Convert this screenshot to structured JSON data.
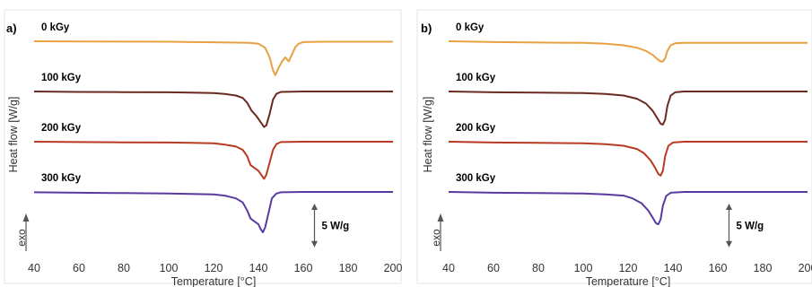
{
  "chart_data": [
    {
      "type": "line",
      "panel_label": "a)",
      "xlabel": "Temperature [°C]",
      "ylabel": "Heat flow [W/g]",
      "xlim": [
        40,
        200
      ],
      "xticks": [
        40,
        60,
        80,
        100,
        120,
        140,
        160,
        180,
        200
      ],
      "xtick_labels": [
        "40",
        "60",
        "80",
        "100",
        "120",
        "140",
        "160",
        "180",
        "200"
      ],
      "exo_label": "exo",
      "scale_bar_label": "5 W/g",
      "scale_bar_value": 5,
      "scale_bar_x": 165,
      "grid": false,
      "series": [
        {
          "name": "0 kGy",
          "color": "#e8a040",
          "x": [
            40,
            60,
            80,
            100,
            110,
            120,
            128,
            136,
            140,
            143,
            145,
            146.5,
            147.5,
            149,
            150.5,
            152,
            153.5,
            155,
            156.5,
            158,
            160,
            170,
            200
          ],
          "y": [
            0,
            -0.03,
            -0.04,
            -0.05,
            -0.1,
            -0.12,
            -0.15,
            -0.2,
            -0.3,
            -0.8,
            -2.0,
            -3.6,
            -4.2,
            -3.3,
            -2.5,
            -2.0,
            -2.5,
            -1.6,
            -0.7,
            -0.3,
            -0.1,
            -0.05,
            -0.05
          ]
        },
        {
          "name": "100 kGy",
          "color": "#6a2a1e",
          "x": [
            40,
            60,
            80,
            100,
            110,
            120,
            125,
            130,
            133,
            135,
            137,
            139,
            141,
            142.5,
            143.5,
            145,
            146.5,
            148,
            150,
            160,
            200
          ],
          "y": [
            0,
            -0.05,
            -0.08,
            -0.1,
            -0.15,
            -0.2,
            -0.3,
            -0.5,
            -0.8,
            -1.4,
            -2.4,
            -3.0,
            -3.8,
            -4.4,
            -4.2,
            -2.8,
            -1.0,
            -0.3,
            -0.05,
            0,
            0
          ]
        },
        {
          "name": "200 kGy",
          "color": "#b83a22",
          "x": [
            40,
            60,
            80,
            100,
            110,
            120,
            125,
            130,
            133,
            135,
            136.5,
            138,
            140,
            141.5,
            142.5,
            143.5,
            145,
            146.5,
            148,
            150,
            160,
            200
          ],
          "y": [
            0,
            -0.05,
            -0.08,
            -0.1,
            -0.15,
            -0.2,
            -0.35,
            -0.6,
            -1.0,
            -1.8,
            -2.9,
            -3.2,
            -3.6,
            -4.2,
            -4.6,
            -4.1,
            -2.6,
            -1.0,
            -0.3,
            -0.05,
            0,
            0
          ]
        },
        {
          "name": "300 kGy",
          "color": "#5a3aa0",
          "x": [
            40,
            60,
            80,
            100,
            110,
            120,
            125,
            130,
            133,
            135,
            136.5,
            138,
            140,
            141,
            142,
            143,
            144.5,
            146,
            148,
            150,
            160,
            200
          ],
          "y": [
            -0.05,
            -0.1,
            -0.15,
            -0.2,
            -0.25,
            -0.3,
            -0.45,
            -0.8,
            -1.3,
            -2.3,
            -3.3,
            -3.6,
            -4.0,
            -4.6,
            -5.0,
            -4.4,
            -2.6,
            -0.8,
            -0.2,
            -0.05,
            0,
            0
          ]
        }
      ]
    },
    {
      "type": "line",
      "panel_label": "b)",
      "xlabel": "Temperature [°C]",
      "ylabel": "Heat flow [W/g]",
      "xlim": [
        40,
        200
      ],
      "xticks": [
        40,
        60,
        80,
        100,
        120,
        140,
        160,
        180,
        200
      ],
      "xtick_labels": [
        "40",
        "60",
        "80",
        "100",
        "120",
        "140",
        "160",
        "180",
        "200"
      ],
      "exo_label": "exo",
      "scale_bar_label": "5 W/g",
      "scale_bar_value": 5,
      "scale_bar_x": 165,
      "grid": false,
      "series": [
        {
          "name": "0 kGy",
          "color": "#e8a040",
          "x": [
            40,
            60,
            80,
            100,
            110,
            118,
            124,
            128,
            131,
            133,
            134.5,
            135.5,
            136.5,
            137.5,
            139,
            141,
            145,
            160,
            200
          ],
          "y": [
            0,
            -0.1,
            -0.15,
            -0.2,
            -0.3,
            -0.5,
            -0.8,
            -1.2,
            -1.7,
            -2.2,
            -2.5,
            -2.5,
            -2.1,
            -1.2,
            -0.5,
            -0.25,
            -0.2,
            -0.2,
            -0.2
          ]
        },
        {
          "name": "100 kGy",
          "color": "#6a2a1e",
          "x": [
            40,
            60,
            80,
            100,
            110,
            118,
            124,
            128,
            131,
            133,
            134.5,
            135.5,
            136.5,
            137.5,
            139,
            141,
            145,
            160,
            200
          ],
          "y": [
            0,
            -0.1,
            -0.15,
            -0.2,
            -0.3,
            -0.5,
            -0.9,
            -1.5,
            -2.4,
            -3.3,
            -4.0,
            -4.1,
            -3.5,
            -1.8,
            -0.5,
            -0.1,
            0,
            0,
            0
          ]
        },
        {
          "name": "200 kGy",
          "color": "#b83a22",
          "x": [
            40,
            60,
            80,
            100,
            110,
            118,
            124,
            127,
            130,
            132,
            133.5,
            134.5,
            135.5,
            136.5,
            138,
            140,
            145,
            160,
            200
          ],
          "y": [
            0,
            -0.1,
            -0.15,
            -0.2,
            -0.3,
            -0.5,
            -0.9,
            -1.4,
            -2.3,
            -3.2,
            -4.0,
            -4.2,
            -3.6,
            -1.8,
            -0.5,
            -0.1,
            0,
            0,
            0
          ]
        },
        {
          "name": "300 kGy",
          "color": "#5a3aa0",
          "x": [
            40,
            60,
            80,
            100,
            110,
            118,
            122,
            126,
            129,
            131,
            132.5,
            133.5,
            134.5,
            135.5,
            137,
            139,
            145,
            160,
            200
          ],
          "y": [
            0,
            -0.1,
            -0.15,
            -0.2,
            -0.3,
            -0.45,
            -0.8,
            -1.4,
            -2.3,
            -3.2,
            -3.9,
            -4.0,
            -3.4,
            -1.7,
            -0.5,
            -0.1,
            0,
            0,
            0
          ]
        }
      ]
    }
  ]
}
